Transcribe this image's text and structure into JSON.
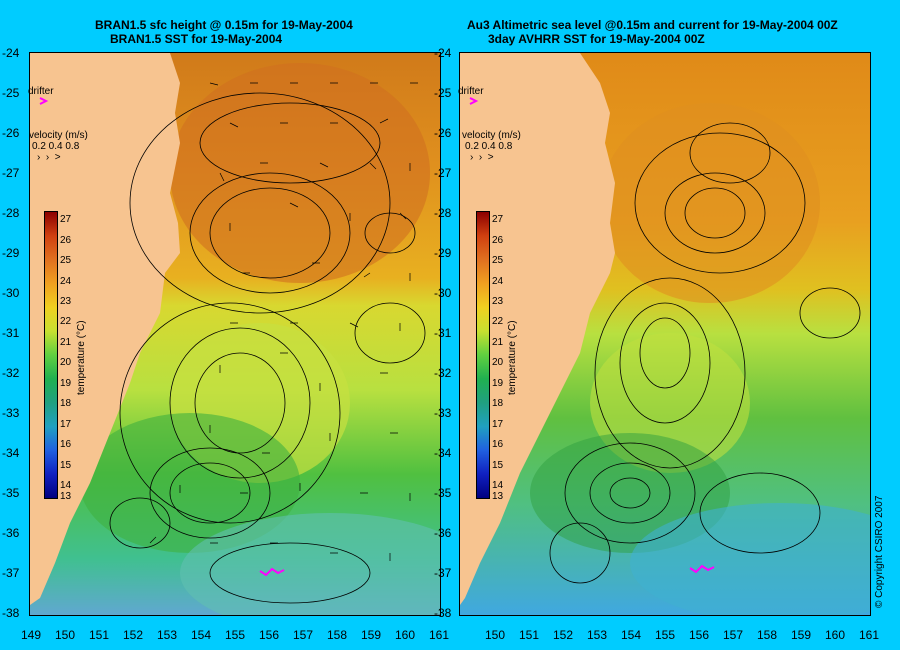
{
  "left_panel": {
    "title_line1": "BRAN1.5 sfc height @ 0.15m for 19-May-2004",
    "title_line2": "BRAN1.5 SST for 19-May-2004"
  },
  "right_panel": {
    "title_line1": "Au3 Altimetric sea level  @0.15m and current for 19-May-2004 00Z",
    "title_line2": "3day AVHRR SST for 19-May-2004 00Z"
  },
  "y_ticks": [
    "-24",
    "-25",
    "-26",
    "-27",
    "-28",
    "-29",
    "-30",
    "-31",
    "-32",
    "-33",
    "-34",
    "-35",
    "-36",
    "-37",
    "-38"
  ],
  "x_ticks": [
    "149",
    "150",
    "151",
    "152",
    "153",
    "154",
    "155",
    "156",
    "157",
    "158",
    "159",
    "160",
    "161"
  ],
  "colorbar": {
    "title": "temperature (°C)",
    "labels": [
      "27",
      "26",
      "25",
      "24",
      "23",
      "22",
      "21",
      "20",
      "19",
      "18",
      "17",
      "16",
      "15",
      "14",
      "13"
    ]
  },
  "drifter_label": "drifter",
  "velocity_legend": {
    "title": "velocity (m/s)",
    "values": "0.2 0.4 0.8"
  },
  "copyright": "© Copyright CSIRO 2007",
  "colors": {
    "background": "#00ccff",
    "land": "#f7c490",
    "drifter": "#ff00ff"
  }
}
